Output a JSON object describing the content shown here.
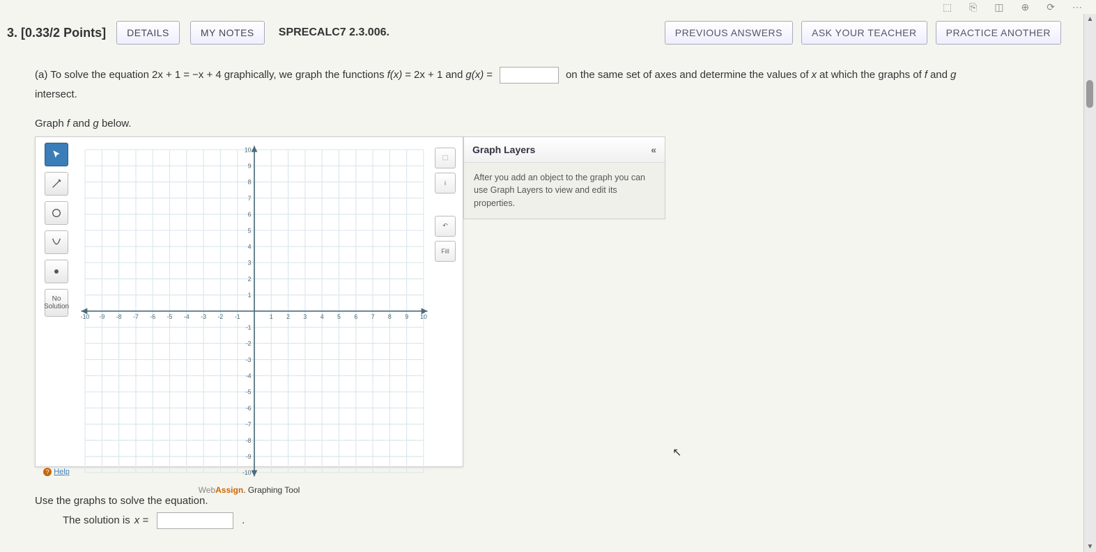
{
  "topIcons": [
    "⬚",
    "⎘",
    "◫",
    "⊕",
    "⟳",
    "⋯"
  ],
  "header": {
    "number": "3.",
    "points": "[0.33/2 Points]",
    "details": "DETAILS",
    "notes": "MY NOTES",
    "code": "SPRECALC7 2.3.006.",
    "prev": "PREVIOUS ANSWERS",
    "ask": "ASK YOUR TEACHER",
    "practice": "PRACTICE ANOTHER"
  },
  "question": {
    "prefix": "(a) To solve the equation",
    "eq1_lhs": "2x + 1",
    "eq_mid": "=",
    "eq1_rhs": "−x + 4",
    "middle": "graphically, we graph the functions",
    "fx": "f(x)",
    "feq": "=",
    "fval": "2x + 1",
    "and": "and",
    "gx": "g(x)",
    "geq": "=",
    "suffix": "on the same set of axes and determine the values of",
    "xvar": "x",
    "suffix2": "at which the graphs of",
    "f": "f",
    "and2": "and",
    "g": "g",
    "intersect": "intersect."
  },
  "subInstruction_pre": "Graph",
  "subInstruction_f": "f",
  "subInstruction_and": "and",
  "subInstruction_g": "g",
  "subInstruction_post": "below.",
  "tools": {
    "noSolution": "No\nSolution",
    "fill": "Fill",
    "help": "Help"
  },
  "grid": {
    "xmin": -10,
    "xmax": 10,
    "ymin": -10,
    "ymax": 10,
    "step": 1,
    "gridColor": "#d9e6ec",
    "axisColor": "#4a6b7a",
    "tickFontSize": 8
  },
  "footer": {
    "web": "Web",
    "assign": "Assign",
    "rest": ". Graphing Tool"
  },
  "layers": {
    "title": "Graph Layers",
    "collapse": "«",
    "body": "After you add an object to the graph you can use Graph Layers to view and edit its properties."
  },
  "bottom": {
    "solve": "Use the graphs to solve the equation.",
    "solLabel": "The solution is",
    "xeq": "x ="
  }
}
